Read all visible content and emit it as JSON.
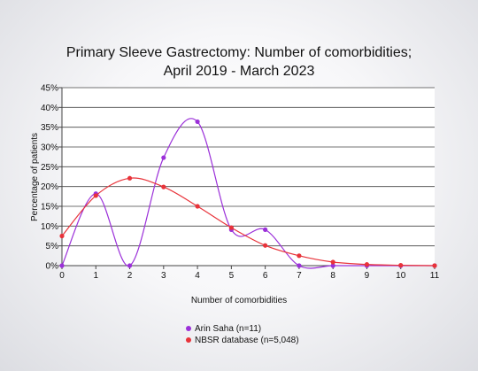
{
  "chart_data": {
    "type": "line",
    "title": [
      "Primary Sleeve Gastrectomy: Number of comorbidities;",
      "April 2019 - March 2023"
    ],
    "xlabel": "Number of comorbidities",
    "ylabel": "Percentage of patients",
    "x": [
      0,
      1,
      2,
      3,
      4,
      5,
      6,
      7,
      8,
      9,
      10,
      11
    ],
    "xlim": [
      0,
      11
    ],
    "ylim": [
      0,
      45
    ],
    "yticks": [
      0,
      5,
      10,
      15,
      20,
      25,
      30,
      35,
      40,
      45
    ],
    "ytick_labels": [
      "0%",
      "5%",
      "10%",
      "15%",
      "20%",
      "25%",
      "30%",
      "35%",
      "40%",
      "45%"
    ],
    "xtick_labels": [
      "0",
      "1",
      "2",
      "3",
      "4",
      "5",
      "6",
      "7",
      "8",
      "9",
      "10",
      "11"
    ],
    "grid": "horizontal",
    "legend_position": "bottom",
    "series": [
      {
        "name": "Arin Saha (n=11)",
        "color": "#9b30d9",
        "values": [
          0,
          18.2,
          0,
          27.3,
          36.4,
          9.1,
          9.1,
          0,
          0,
          0,
          0,
          0
        ]
      },
      {
        "name": "NBSR database (n=5,048)",
        "color": "#e8333a",
        "values": [
          7.5,
          17.7,
          22.1,
          19.9,
          15.0,
          9.6,
          5.1,
          2.5,
          0.9,
          0.3,
          0.1,
          0.0
        ]
      }
    ]
  }
}
